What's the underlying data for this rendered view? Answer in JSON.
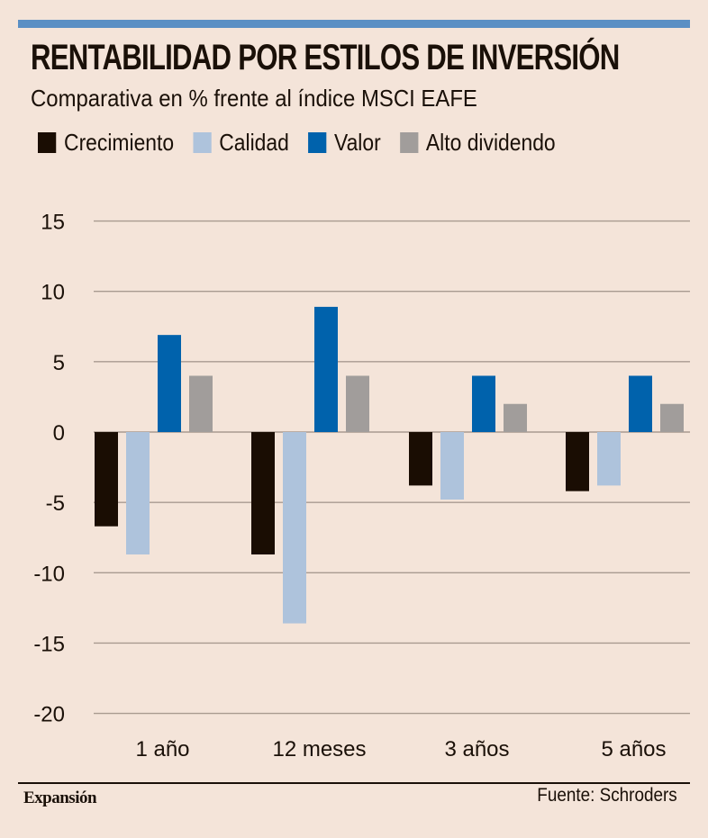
{
  "header": {
    "title": "RENTABILIDAD POR ESTILOS DE INVERSIÓN",
    "subtitle": "Comparativa en % frente al índice MSCI EAFE"
  },
  "footer": {
    "brand": "Expansión",
    "source": "Fuente: Schroders"
  },
  "colors": {
    "accent_bar": "#5a8fc4",
    "background": "#f4e4d9",
    "grid": "#a89a90"
  },
  "chart_data": {
    "type": "bar",
    "title": "RENTABILIDAD POR ESTILOS DE INVERSIÓN",
    "subtitle": "Comparativa en % frente al índice MSCI EAFE",
    "xlabel": "",
    "ylabel": "",
    "categories": [
      "1 año",
      "12 meses",
      "3 años",
      "5 años"
    ],
    "series": [
      {
        "name": "Crecimiento",
        "color": "#1a0d03",
        "values": [
          -6.7,
          -8.7,
          -3.8,
          -4.2
        ]
      },
      {
        "name": "Calidad",
        "color": "#aec3dc",
        "values": [
          -8.7,
          -13.6,
          -4.8,
          -3.8
        ]
      },
      {
        "name": "Valor",
        "color": "#0062ac",
        "values": [
          6.9,
          8.9,
          4.0,
          4.0
        ]
      },
      {
        "name": "Alto dividendo",
        "color": "#a19d9b",
        "values": [
          4.0,
          4.0,
          2.0,
          2.0
        ]
      }
    ],
    "ylim": [
      -20,
      15
    ],
    "yticks": [
      15,
      10,
      5,
      0,
      -5,
      -10,
      -15,
      -20
    ],
    "grid": true,
    "legend_position": "top-left"
  }
}
